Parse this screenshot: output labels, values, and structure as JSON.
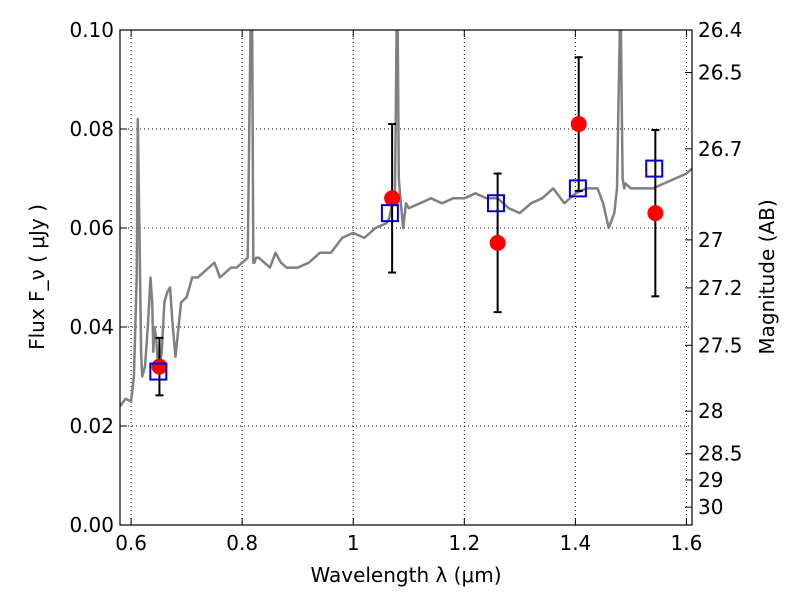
{
  "chart_data": {
    "type": "scatter",
    "xlabel": "Wavelength  λ (μm)",
    "ylabel": "Flux  F_ν  ( μJy )",
    "ylabel_right": "Magnitude (AB)",
    "xlim": [
      0.58,
      1.61
    ],
    "ylim": [
      0.0,
      0.1
    ],
    "grid": true,
    "x_ticks": [
      0.6,
      0.8,
      1.0,
      1.2,
      1.4,
      1.6
    ],
    "x_tick_labels": [
      "0.6",
      "0.8",
      "1",
      "1.2",
      "1.4",
      "1.6"
    ],
    "y_ticks": [
      0.0,
      0.02,
      0.04,
      0.06,
      0.08,
      0.1
    ],
    "y_tick_labels": [
      "0.00",
      "0.02",
      "0.04",
      "0.06",
      "0.08",
      "0.10"
    ],
    "right_ticks": [
      {
        "label": "26.4",
        "flux": 0.1
      },
      {
        "label": "26.5",
        "flux": 0.0914
      },
      {
        "label": "26.7",
        "flux": 0.076
      },
      {
        "label": "27",
        "flux": 0.0576
      },
      {
        "label": "27.2",
        "flux": 0.0479
      },
      {
        "label": "27.5",
        "flux": 0.0363
      },
      {
        "label": "28",
        "flux": 0.023
      },
      {
        "label": "28.5",
        "flux": 0.0144
      },
      {
        "label": "29",
        "flux": 0.0091
      },
      {
        "label": "30",
        "flux": 0.0036
      }
    ],
    "series": [
      {
        "kind": "line",
        "color": "#808080",
        "x": [
          0.58,
          0.59,
          0.6,
          0.605,
          0.61,
          0.612,
          0.615,
          0.618,
          0.62,
          0.625,
          0.63,
          0.635,
          0.638,
          0.64,
          0.642,
          0.645,
          0.648,
          0.65,
          0.655,
          0.66,
          0.665,
          0.67,
          0.675,
          0.68,
          0.69,
          0.7,
          0.71,
          0.72,
          0.73,
          0.74,
          0.75,
          0.76,
          0.77,
          0.78,
          0.79,
          0.8,
          0.81,
          0.815,
          0.818,
          0.82,
          0.822,
          0.825,
          0.83,
          0.84,
          0.85,
          0.86,
          0.87,
          0.88,
          0.9,
          0.92,
          0.94,
          0.96,
          0.98,
          1.0,
          1.02,
          1.04,
          1.06,
          1.065,
          1.07,
          1.075,
          1.078,
          1.08,
          1.082,
          1.085,
          1.09,
          1.095,
          1.1,
          1.12,
          1.14,
          1.16,
          1.18,
          1.2,
          1.22,
          1.24,
          1.26,
          1.28,
          1.3,
          1.32,
          1.34,
          1.36,
          1.38,
          1.4,
          1.42,
          1.44,
          1.45,
          1.46,
          1.47,
          1.475,
          1.48,
          1.482,
          1.485,
          1.488,
          1.49,
          1.5,
          1.52,
          1.54,
          1.56,
          1.58,
          1.6,
          1.61
        ],
        "y": [
          0.024,
          0.0255,
          0.025,
          0.03,
          0.05,
          0.082,
          0.06,
          0.035,
          0.03,
          0.032,
          0.04,
          0.05,
          0.045,
          0.035,
          0.04,
          0.038,
          0.033,
          0.031,
          0.035,
          0.045,
          0.047,
          0.048,
          0.04,
          0.034,
          0.045,
          0.046,
          0.05,
          0.05,
          0.051,
          0.052,
          0.053,
          0.05,
          0.051,
          0.052,
          0.052,
          0.053,
          0.054,
          0.1,
          0.1,
          0.053,
          0.053,
          0.054,
          0.054,
          0.053,
          0.052,
          0.055,
          0.053,
          0.052,
          0.052,
          0.053,
          0.055,
          0.055,
          0.058,
          0.059,
          0.058,
          0.06,
          0.061,
          0.062,
          0.065,
          0.066,
          0.1,
          0.1,
          0.07,
          0.066,
          0.06,
          0.065,
          0.064,
          0.065,
          0.066,
          0.065,
          0.066,
          0.066,
          0.067,
          0.066,
          0.066,
          0.064,
          0.063,
          0.065,
          0.066,
          0.068,
          0.065,
          0.067,
          0.068,
          0.068,
          0.065,
          0.06,
          0.063,
          0.068,
          0.1,
          0.1,
          0.07,
          0.068,
          0.069,
          0.068,
          0.068,
          0.068,
          0.069,
          0.07,
          0.071,
          0.072
        ]
      },
      {
        "kind": "markers",
        "marker": "circle",
        "color": "#ff0000",
        "x": [
          0.651,
          1.07,
          1.26,
          1.406,
          1.544
        ],
        "y": [
          0.032,
          0.066,
          0.057,
          0.081,
          0.063
        ],
        "yerr": [
          0.0058,
          0.015,
          0.014,
          0.0135,
          0.0168
        ]
      },
      {
        "kind": "markers",
        "marker": "square-open",
        "color": "#0000cc",
        "x": [
          0.649,
          1.066,
          1.257,
          1.4045,
          1.542
        ],
        "y": [
          0.031,
          0.063,
          0.065,
          0.068,
          0.072
        ]
      }
    ]
  }
}
